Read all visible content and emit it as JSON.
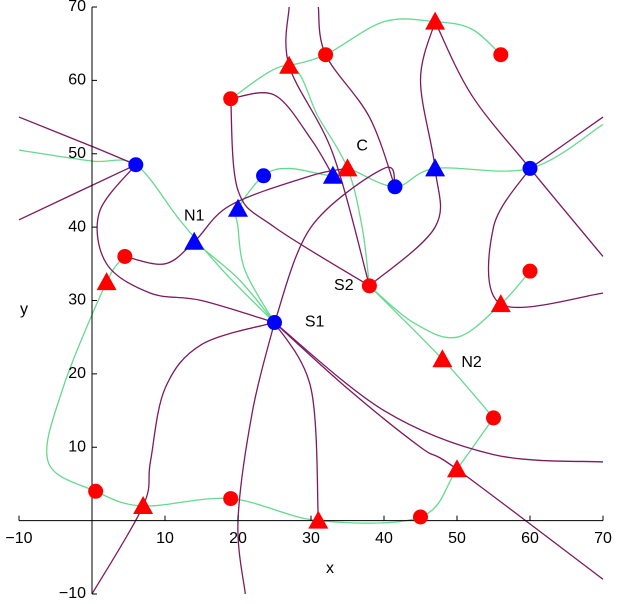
{
  "chart_data": {
    "type": "scatter",
    "xlabel": "x",
    "ylabel": "y",
    "xlim": [
      -10,
      70
    ],
    "ylim": [
      -10,
      70
    ],
    "xticks": [
      {
        "value": -10,
        "label": "−10"
      },
      10,
      20,
      30,
      40,
      50,
      60,
      70
    ],
    "yticks": [
      {
        "value": -10,
        "label": "−10"
      },
      10,
      20,
      30,
      40,
      50,
      60,
      70
    ],
    "curves": [
      {
        "color": "#66d98f",
        "x": [
          -10,
          0,
          6,
          12,
          18,
          25
        ],
        "y": [
          50.5,
          49,
          48.5,
          41,
          34,
          27
        ]
      },
      {
        "color": "#66d98f",
        "x": [
          25,
          21,
          20,
          20,
          23.5,
          27,
          33,
          35,
          41.5,
          47,
          60,
          70
        ],
        "y": [
          27,
          34,
          40,
          42.5,
          47,
          48,
          47,
          48,
          45.5,
          48,
          48,
          54
        ]
      },
      {
        "color": "#66d98f",
        "x": [
          4.5,
          2,
          -4,
          -6,
          0.5,
          7,
          19,
          31,
          45,
          50,
          55
        ],
        "y": [
          36,
          32.5,
          18,
          8,
          4,
          2,
          3,
          0,
          0.5,
          7,
          14
        ]
      },
      {
        "color": "#66d98f",
        "x": [
          38,
          37,
          35,
          31,
          27,
          19
        ],
        "y": [
          32,
          40,
          48,
          55,
          62,
          57.5
        ]
      },
      {
        "color": "#66d98f",
        "x": [
          38,
          44,
          50,
          56,
          60
        ],
        "y": [
          32,
          27,
          25,
          29.5,
          34
        ]
      },
      {
        "color": "#66d98f",
        "x": [
          38,
          48,
          55
        ],
        "y": [
          32,
          22,
          14
        ]
      },
      {
        "color": "#66d98f",
        "x": [
          27,
          32,
          40,
          47,
          52,
          56
        ],
        "y": [
          62,
          63.5,
          68,
          68,
          67,
          63.5
        ]
      },
      {
        "color": "#66d98f",
        "x": [
          14,
          20,
          25
        ],
        "y": [
          38,
          33,
          27
        ]
      },
      {
        "color": "#7b1a5e",
        "x": [
          -10,
          6
        ],
        "y": [
          41,
          48.5
        ]
      },
      {
        "color": "#7b1a5e",
        "x": [
          -10,
          0,
          6
        ],
        "y": [
          55,
          51,
          48.5
        ]
      },
      {
        "color": "#7b1a5e",
        "x": [
          6,
          1,
          2,
          8,
          15,
          25
        ],
        "y": [
          48.5,
          42,
          35,
          31,
          30,
          27
        ]
      },
      {
        "color": "#7b1a5e",
        "x": [
          4.5,
          10,
          14,
          19,
          30,
          35
        ],
        "y": [
          36,
          35,
          38,
          43,
          47,
          48
        ]
      },
      {
        "color": "#7b1a5e",
        "x": [
          25,
          15,
          10,
          8,
          7,
          0
        ],
        "y": [
          27,
          24,
          18,
          8,
          2,
          -10
        ]
      },
      {
        "color": "#7b1a5e",
        "x": [
          25,
          30,
          31
        ],
        "y": [
          27,
          18,
          0
        ]
      },
      {
        "color": "#7b1a5e",
        "x": [
          25,
          22,
          20,
          21
        ],
        "y": [
          27,
          15,
          0,
          -10
        ]
      },
      {
        "color": "#7b1a5e",
        "x": [
          25,
          35,
          45,
          50,
          70
        ],
        "y": [
          27,
          18,
          10,
          7,
          -8
        ]
      },
      {
        "color": "#7b1a5e",
        "x": [
          25,
          40,
          55,
          70
        ],
        "y": [
          27,
          15,
          9,
          8
        ]
      },
      {
        "color": "#7b1a5e",
        "x": [
          19,
          20,
          25,
          38
        ],
        "y": [
          57.5,
          45,
          40,
          32
        ]
      },
      {
        "color": "#7b1a5e",
        "x": [
          19,
          25,
          30,
          33
        ],
        "y": [
          57.5,
          58,
          52,
          47
        ]
      },
      {
        "color": "#7b1a5e",
        "x": [
          27,
          27,
          33,
          38
        ],
        "y": [
          70,
          62,
          50,
          32
        ]
      },
      {
        "color": "#7b1a5e",
        "x": [
          31,
          32,
          38,
          41.5
        ],
        "y": [
          70,
          63.5,
          55,
          45.5
        ]
      },
      {
        "color": "#7b1a5e",
        "x": [
          38,
          47,
          47,
          45,
          47
        ],
        "y": [
          32,
          40,
          48,
          60,
          68
        ]
      },
      {
        "color": "#7b1a5e",
        "x": [
          47,
          52,
          60,
          70
        ],
        "y": [
          68,
          58,
          48,
          36
        ]
      },
      {
        "color": "#7b1a5e",
        "x": [
          60,
          55,
          56,
          70
        ],
        "y": [
          48,
          40,
          29.5,
          31
        ]
      },
      {
        "color": "#7b1a5e",
        "x": [
          60,
          70
        ],
        "y": [
          48,
          55
        ]
      },
      {
        "color": "#7b1a5e",
        "x": [
          25,
          30,
          40,
          41.5
        ],
        "y": [
          27,
          40,
          48,
          45.5
        ]
      }
    ],
    "series": [
      {
        "color": "#ff0000",
        "marker": "circle",
        "x": [
          0.5,
          19,
          45,
          55,
          60,
          38,
          32,
          56,
          19,
          4.5
        ],
        "values": [
          4,
          3,
          0.5,
          14,
          34,
          32,
          63.5,
          63.5,
          57.5,
          36
        ]
      },
      {
        "color": "#ff0000",
        "marker": "triangle",
        "x": [
          7,
          31,
          50,
          48,
          56,
          2,
          27,
          47,
          35
        ],
        "values": [
          2,
          0,
          7,
          22,
          29.5,
          32.5,
          62,
          68,
          48
        ]
      },
      {
        "color": "#0000ff",
        "marker": "circle",
        "x": [
          6,
          23.5,
          41.5,
          60,
          25
        ],
        "values": [
          48.5,
          47,
          45.5,
          48,
          27
        ]
      },
      {
        "color": "#0000ff",
        "marker": "triangle",
        "x": [
          14,
          20,
          33,
          47
        ],
        "values": [
          38,
          42.5,
          47,
          48
        ]
      }
    ],
    "annotations": [
      {
        "text": "N1",
        "x": 14,
        "y": 41.5
      },
      {
        "text": "N2",
        "x": 52,
        "y": 21.5
      },
      {
        "text": "S1",
        "x": 30.5,
        "y": 27
      },
      {
        "text": "S2",
        "x": 34.5,
        "y": 32
      },
      {
        "text": "C",
        "x": 37,
        "y": 51
      }
    ]
  }
}
